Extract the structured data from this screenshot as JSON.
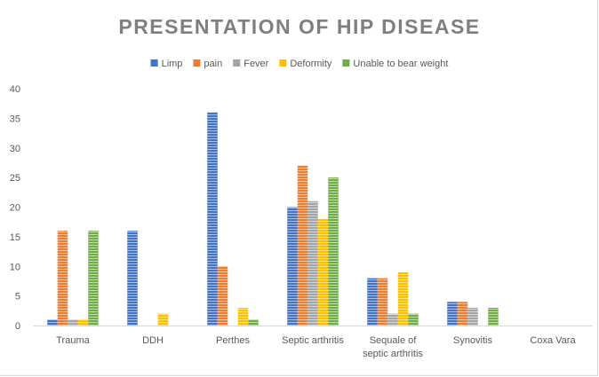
{
  "chart_data": {
    "type": "bar",
    "title": "PRESENTATION OF HIP DISEASE",
    "xlabel": "",
    "ylabel": "",
    "ylim": [
      0,
      40
    ],
    "yticks": [
      0,
      5,
      10,
      15,
      20,
      25,
      30,
      35,
      40
    ],
    "gridlines": false,
    "legend_position": "top",
    "categories": [
      "Trauma",
      "DDH",
      "Perthes",
      "Septic arthritis",
      "Sequale of septic arthritis",
      "Synovitis",
      "Coxa Vara"
    ],
    "category_lines": [
      [
        "Trauma"
      ],
      [
        "DDH"
      ],
      [
        "Perthes"
      ],
      [
        "Septic arthritis"
      ],
      [
        "Sequale of",
        "septic arthritis"
      ],
      [
        "Synovitis"
      ],
      [
        "Coxa Vara"
      ]
    ],
    "series": [
      {
        "name": "Limp",
        "color": "#4472c4",
        "values": [
          1,
          16,
          36,
          20,
          8,
          4,
          0
        ]
      },
      {
        "name": "pain",
        "color": "#ed7d31",
        "values": [
          16,
          0,
          10,
          27,
          8,
          4,
          0
        ]
      },
      {
        "name": "Fever",
        "color": "#a5a5a5",
        "values": [
          1,
          0,
          0,
          21,
          2,
          3,
          0
        ]
      },
      {
        "name": "Deformity",
        "color": "#ffc000",
        "values": [
          1,
          2,
          3,
          18,
          9,
          0,
          0
        ]
      },
      {
        "name": "Unable to bear weight",
        "color": "#70ad47",
        "values": [
          16,
          0,
          1,
          25,
          2,
          3,
          0
        ]
      }
    ]
  }
}
